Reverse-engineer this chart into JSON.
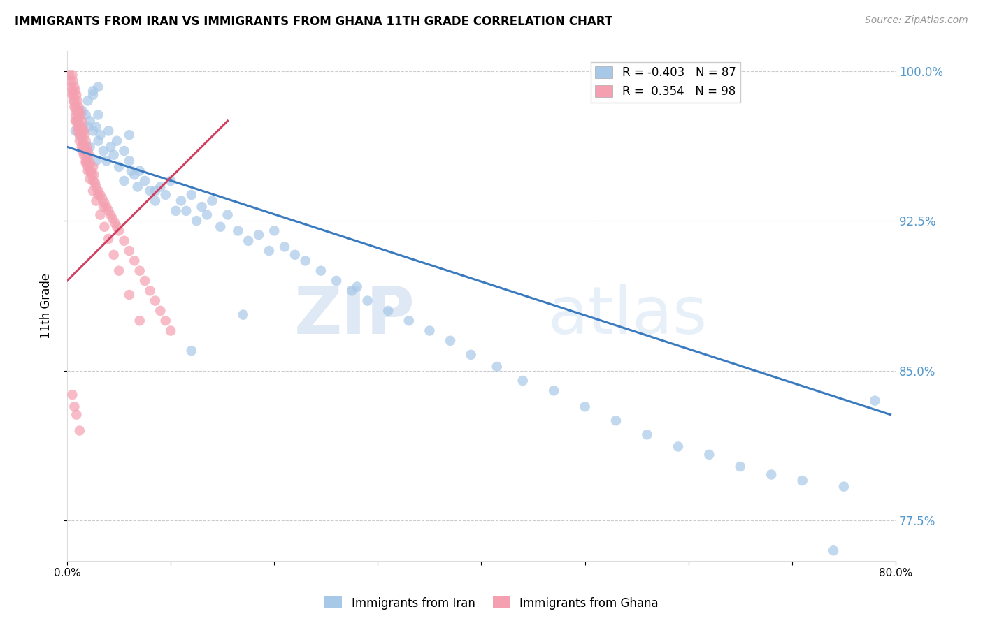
{
  "title": "IMMIGRANTS FROM IRAN VS IMMIGRANTS FROM GHANA 11TH GRADE CORRELATION CHART",
  "source": "Source: ZipAtlas.com",
  "ylabel": "11th Grade",
  "legend_blue_R": "-0.403",
  "legend_blue_N": "87",
  "legend_pink_R": "0.354",
  "legend_pink_N": "98",
  "legend_blue_label": "Immigrants from Iran",
  "legend_pink_label": "Immigrants from Ghana",
  "blue_color": "#a8c8e8",
  "pink_color": "#f4a0b0",
  "blue_line_color": "#3a7abf",
  "pink_line_color": "#d04060",
  "watermark_zip": "ZIP",
  "watermark_atlas": "atlas",
  "background_color": "#ffffff",
  "grid_color": "#cccccc",
  "right_axis_color": "#5599cc",
  "xlim": [
    0.0,
    0.8
  ],
  "ylim": [
    0.755,
    1.01
  ],
  "y_ticks": [
    0.775,
    0.85,
    0.925,
    1.0
  ],
  "y_tick_labels": [
    "77.5%",
    "85.0%",
    "92.5%",
    "100.0%"
  ],
  "x_ticks": [
    0.0,
    0.1,
    0.2,
    0.3,
    0.4,
    0.5,
    0.6,
    0.7,
    0.8
  ],
  "x_tick_labels": [
    "0.0%",
    "",
    "",
    "",
    "",
    "",
    "",
    "",
    "80.0%"
  ],
  "blue_scatter_x": [
    0.008,
    0.01,
    0.012,
    0.015,
    0.015,
    0.018,
    0.018,
    0.02,
    0.02,
    0.02,
    0.022,
    0.022,
    0.025,
    0.025,
    0.028,
    0.028,
    0.03,
    0.03,
    0.032,
    0.035,
    0.038,
    0.04,
    0.042,
    0.045,
    0.048,
    0.05,
    0.055,
    0.055,
    0.06,
    0.062,
    0.065,
    0.068,
    0.07,
    0.075,
    0.08,
    0.085,
    0.09,
    0.095,
    0.1,
    0.105,
    0.11,
    0.115,
    0.12,
    0.125,
    0.13,
    0.135,
    0.14,
    0.148,
    0.155,
    0.165,
    0.175,
    0.185,
    0.195,
    0.2,
    0.21,
    0.22,
    0.23,
    0.245,
    0.26,
    0.275,
    0.29,
    0.31,
    0.33,
    0.35,
    0.37,
    0.39,
    0.415,
    0.44,
    0.47,
    0.5,
    0.53,
    0.56,
    0.59,
    0.62,
    0.65,
    0.68,
    0.71,
    0.75,
    0.78,
    0.025,
    0.03,
    0.06,
    0.085,
    0.12,
    0.17,
    0.28,
    0.74
  ],
  "blue_scatter_y": [
    0.97,
    0.975,
    0.968,
    0.98,
    0.965,
    0.978,
    0.96,
    0.985,
    0.972,
    0.958,
    0.975,
    0.962,
    0.988,
    0.97,
    0.972,
    0.955,
    0.978,
    0.965,
    0.968,
    0.96,
    0.955,
    0.97,
    0.962,
    0.958,
    0.965,
    0.952,
    0.96,
    0.945,
    0.955,
    0.95,
    0.948,
    0.942,
    0.95,
    0.945,
    0.94,
    0.935,
    0.942,
    0.938,
    0.945,
    0.93,
    0.935,
    0.93,
    0.938,
    0.925,
    0.932,
    0.928,
    0.935,
    0.922,
    0.928,
    0.92,
    0.915,
    0.918,
    0.91,
    0.92,
    0.912,
    0.908,
    0.905,
    0.9,
    0.895,
    0.89,
    0.885,
    0.88,
    0.875,
    0.87,
    0.865,
    0.858,
    0.852,
    0.845,
    0.84,
    0.832,
    0.825,
    0.818,
    0.812,
    0.808,
    0.802,
    0.798,
    0.795,
    0.792,
    0.835,
    0.99,
    0.992,
    0.968,
    0.94,
    0.86,
    0.878,
    0.892,
    0.76
  ],
  "pink_scatter_x": [
    0.002,
    0.003,
    0.004,
    0.005,
    0.005,
    0.006,
    0.006,
    0.007,
    0.007,
    0.008,
    0.008,
    0.009,
    0.009,
    0.01,
    0.01,
    0.011,
    0.011,
    0.012,
    0.012,
    0.013,
    0.013,
    0.014,
    0.014,
    0.015,
    0.015,
    0.016,
    0.016,
    0.017,
    0.017,
    0.018,
    0.018,
    0.019,
    0.019,
    0.02,
    0.02,
    0.021,
    0.022,
    0.023,
    0.024,
    0.025,
    0.026,
    0.027,
    0.028,
    0.03,
    0.032,
    0.034,
    0.036,
    0.038,
    0.04,
    0.042,
    0.044,
    0.046,
    0.048,
    0.05,
    0.055,
    0.06,
    0.065,
    0.07,
    0.075,
    0.08,
    0.085,
    0.09,
    0.095,
    0.1,
    0.008,
    0.01,
    0.012,
    0.015,
    0.018,
    0.022,
    0.025,
    0.03,
    0.035,
    0.005,
    0.006,
    0.007,
    0.008,
    0.009,
    0.01,
    0.012,
    0.014,
    0.016,
    0.018,
    0.02,
    0.022,
    0.025,
    0.028,
    0.032,
    0.036,
    0.04,
    0.045,
    0.05,
    0.06,
    0.07,
    0.005,
    0.007,
    0.009,
    0.012
  ],
  "pink_scatter_y": [
    0.998,
    0.995,
    0.992,
    0.998,
    0.99,
    0.995,
    0.988,
    0.992,
    0.985,
    0.99,
    0.982,
    0.988,
    0.98,
    0.985,
    0.978,
    0.982,
    0.975,
    0.98,
    0.972,
    0.978,
    0.97,
    0.975,
    0.968,
    0.972,
    0.965,
    0.97,
    0.962,
    0.968,
    0.96,
    0.965,
    0.958,
    0.962,
    0.955,
    0.96,
    0.952,
    0.958,
    0.954,
    0.95,
    0.948,
    0.952,
    0.948,
    0.944,
    0.942,
    0.94,
    0.938,
    0.936,
    0.934,
    0.932,
    0.93,
    0.928,
    0.926,
    0.924,
    0.922,
    0.92,
    0.915,
    0.91,
    0.905,
    0.9,
    0.895,
    0.89,
    0.885,
    0.88,
    0.875,
    0.87,
    0.975,
    0.97,
    0.965,
    0.96,
    0.955,
    0.95,
    0.945,
    0.938,
    0.932,
    0.988,
    0.985,
    0.982,
    0.978,
    0.975,
    0.972,
    0.968,
    0.962,
    0.958,
    0.954,
    0.95,
    0.946,
    0.94,
    0.935,
    0.928,
    0.922,
    0.916,
    0.908,
    0.9,
    0.888,
    0.875,
    0.838,
    0.832,
    0.828,
    0.82
  ],
  "blue_trend_x": [
    0.0,
    0.795
  ],
  "blue_trend_y": [
    0.962,
    0.828
  ],
  "pink_trend_x": [
    0.0,
    0.155
  ],
  "pink_trend_y": [
    0.895,
    0.975
  ]
}
